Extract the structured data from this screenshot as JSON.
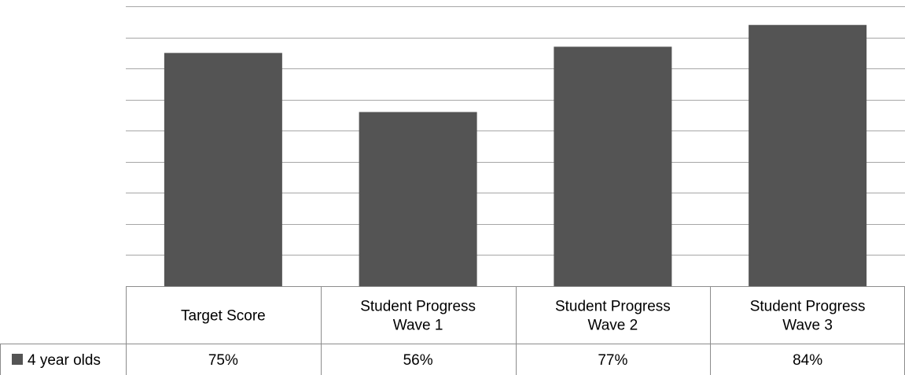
{
  "chart_data": {
    "type": "bar",
    "title": "",
    "xlabel": "",
    "ylabel": "",
    "categories": [
      [
        "Target Score"
      ],
      [
        "Student Progress",
        "Wave 1"
      ],
      [
        "Student Progress",
        "Wave 2"
      ],
      [
        "Student Progress",
        "Wave 3"
      ]
    ],
    "series": [
      {
        "name": "4 year olds",
        "values": [
          75,
          56,
          77,
          84
        ],
        "labels": [
          "75%",
          "56%",
          "77%",
          "84%"
        ],
        "color": "#545454"
      }
    ],
    "ylim": [
      0,
      90
    ],
    "ytick_step": 10,
    "grid": true,
    "legend": "data-table-row",
    "colors": {
      "bar": "#545454",
      "grid": "#a6a6a6",
      "table_border": "#8c8c8c"
    }
  }
}
